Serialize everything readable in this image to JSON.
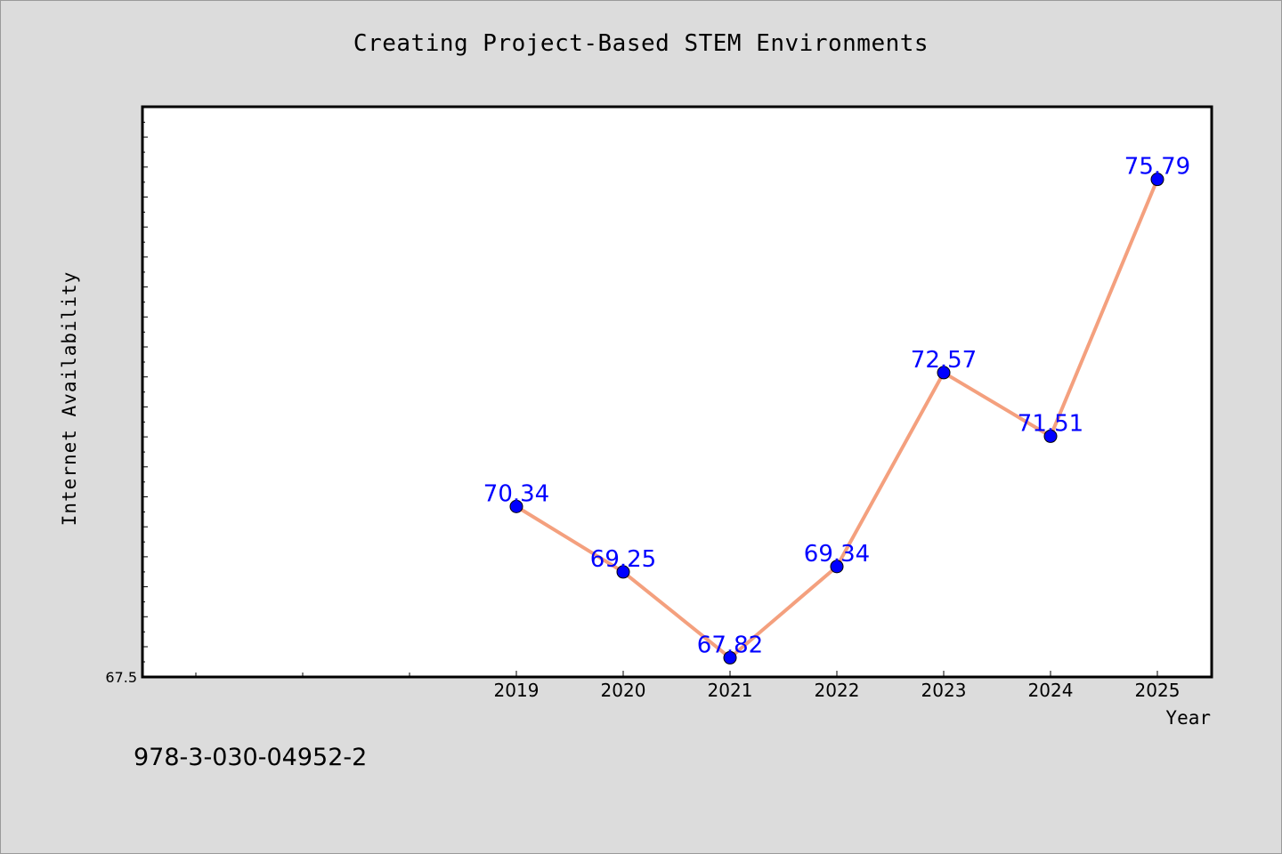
{
  "chart_data": {
    "type": "line",
    "title": "Creating Project-Based STEM Environments",
    "xlabel": "Year",
    "ylabel": "Internet Availability",
    "categories": [
      "2019",
      "2020",
      "2021",
      "2022",
      "2023",
      "2024",
      "2025"
    ],
    "series": [
      {
        "values": [
          70.34,
          69.25,
          67.82,
          69.34,
          72.57,
          71.51,
          75.79
        ]
      }
    ],
    "data_labels": [
      "70.34",
      "69.25",
      "67.82",
      "69.34",
      "72.57",
      "71.51",
      "75.79"
    ],
    "y_tick_labels": [
      "67.5"
    ],
    "ylim": [
      67.5,
      77.0
    ],
    "grid": false,
    "line_color": "#f4a07e",
    "marker_color": "#0000ff",
    "label_color": "#0000ff",
    "background": "#dcdcdc",
    "plot_background": "#ffffff"
  },
  "footer": {
    "isbn": "978-3-030-04952-2"
  }
}
